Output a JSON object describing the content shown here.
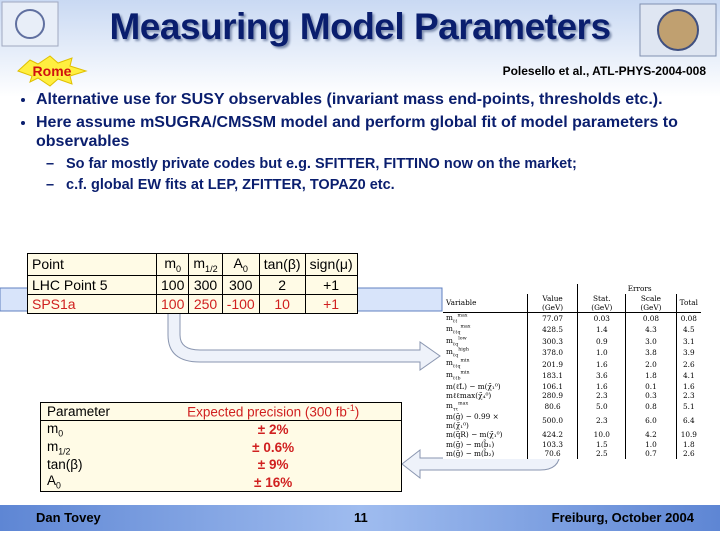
{
  "header": {
    "title": "Measuring Model Parameters",
    "badge": "Rome",
    "citation": "Polesello et al., ATL-PHYS-2004-008"
  },
  "bullets": [
    "Alternative use for SUSY observables (invariant mass end-points, thresholds etc.).",
    "Here assume mSUGRA/CMSSM model and perform global fit of model parameters to observables"
  ],
  "sub_bullets": [
    "So far mostly private codes but e.g. SFITTER, FITTINO now on the market;",
    "c.f. global EW fits at LEP, ZFITTER, TOPAZ0 etc."
  ],
  "params_table": {
    "columns": [
      "Point",
      {
        "text": "m",
        "sub": "0"
      },
      {
        "text": "m",
        "sub": "1/2"
      },
      {
        "text": "A",
        "sub": "0"
      },
      "tan(β)",
      "sign(μ)"
    ],
    "rows": [
      [
        "LHC Point 5",
        "100",
        "300",
        "300",
        "2",
        "+1"
      ],
      [
        "SPS1a",
        "100",
        "250",
        "-100",
        "10",
        "+1"
      ]
    ]
  },
  "errors_table": {
    "group_header": "Errors",
    "columns": [
      "Variable",
      "Value (GeV)",
      "Stat. (GeV)",
      "Scale (GeV)",
      "Total"
    ],
    "rows": [
      [
        {
          "text": "m",
          "sub": "ℓℓ",
          "sup": "max"
        },
        "77.07",
        "0.03",
        "0.08",
        "0.08"
      ],
      [
        {
          "text": "m",
          "sub": "ℓℓq",
          "sup": "max"
        },
        "428.5",
        "1.4",
        "4.3",
        "4.5"
      ],
      [
        {
          "text": "m",
          "sub": "ℓq",
          "sup": "low"
        },
        "300.3",
        "0.9",
        "3.0",
        "3.1"
      ],
      [
        {
          "text": "m",
          "sub": "ℓq",
          "sup": "high"
        },
        "378.0",
        "1.0",
        "3.8",
        "3.9"
      ],
      [
        {
          "text": "m",
          "sub": "ℓℓq",
          "sup": "min"
        },
        "201.9",
        "1.6",
        "2.0",
        "2.6"
      ],
      [
        {
          "text": "m",
          "sub": "ℓℓb",
          "sup": "min"
        },
        "183.1",
        "3.6",
        "1.8",
        "4.1"
      ],
      [
        "m(ℓ̃L) − m(χ̃₁⁰)",
        "106.1",
        "1.6",
        "0.1",
        "1.6"
      ],
      [
        "mℓℓmax(χ̃₄⁰)",
        "280.9",
        "2.3",
        "0.3",
        "2.3"
      ],
      [
        {
          "text": "m",
          "sub": "ττ",
          "sup": "max"
        },
        "80.6",
        "5.0",
        "0.8",
        "5.1"
      ],
      [
        "m(g̃) − 0.99 × m(χ̃₁⁰)",
        "500.0",
        "2.3",
        "6.0",
        "6.4"
      ],
      [
        "m(q̃R) − m(χ̃₁⁰)",
        "424.2",
        "10.0",
        "4.2",
        "10.9"
      ],
      [
        "m(g̃) − m(b̃₁)",
        "103.3",
        "1.5",
        "1.0",
        "1.8"
      ],
      [
        "m(g̃) − m(b̃₂)",
        "70.6",
        "2.5",
        "0.7",
        "2.6"
      ]
    ]
  },
  "precision_table": {
    "columns": [
      "Parameter",
      {
        "text": "Expected precision (300 fb",
        "sup": "-1",
        "tail": ")"
      }
    ],
    "rows": [
      [
        {
          "text": "m",
          "sub": "0"
        },
        "±  2%"
      ],
      [
        {
          "text": "m",
          "sub": "1/2"
        },
        "±  0.6%"
      ],
      [
        "tan(β)",
        "±  9%"
      ],
      [
        {
          "text": "A",
          "sub": "0"
        },
        "± 16%"
      ]
    ]
  },
  "footer": {
    "author": "Dan Tovey",
    "page": "11",
    "event": "Freiburg, October 2004"
  }
}
